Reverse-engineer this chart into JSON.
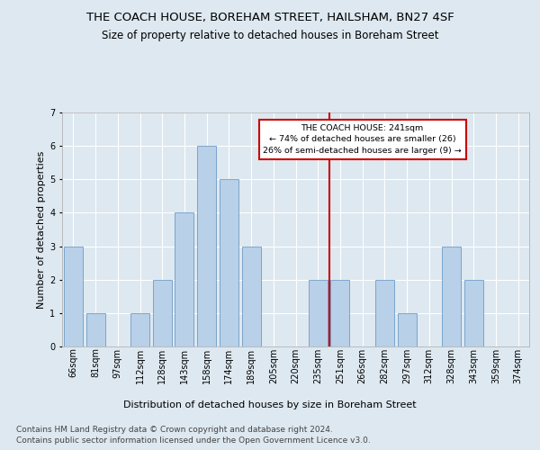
{
  "title": "THE COACH HOUSE, BOREHAM STREET, HAILSHAM, BN27 4SF",
  "subtitle": "Size of property relative to detached houses in Boreham Street",
  "xlabel": "Distribution of detached houses by size in Boreham Street",
  "ylabel": "Number of detached properties",
  "categories": [
    "66sqm",
    "81sqm",
    "97sqm",
    "112sqm",
    "128sqm",
    "143sqm",
    "158sqm",
    "174sqm",
    "189sqm",
    "205sqm",
    "220sqm",
    "235sqm",
    "251sqm",
    "266sqm",
    "282sqm",
    "297sqm",
    "312sqm",
    "328sqm",
    "343sqm",
    "359sqm",
    "374sqm"
  ],
  "values": [
    3,
    1,
    0,
    1,
    2,
    4,
    6,
    5,
    3,
    0,
    0,
    2,
    2,
    0,
    2,
    1,
    0,
    3,
    2,
    0,
    0
  ],
  "bar_color": "#b8d0e8",
  "bar_edge_color": "#5a8fc0",
  "ylim": [
    0,
    7
  ],
  "yticks": [
    0,
    1,
    2,
    3,
    4,
    5,
    6,
    7
  ],
  "subject_size_label": "241sqm",
  "subject_label": "THE COACH HOUSE: 241sqm",
  "annotation_line1": "← 74% of detached houses are smaller (26)",
  "annotation_line2": "26% of semi-detached houses are larger (9) →",
  "vline_color": "#cc0000",
  "annotation_box_edge": "#cc0000",
  "background_color": "#dde8f0",
  "plot_bg_color": "#dde8f0",
  "footer1": "Contains HM Land Registry data © Crown copyright and database right 2024.",
  "footer2": "Contains public sector information licensed under the Open Government Licence v3.0.",
  "title_fontsize": 9.5,
  "subtitle_fontsize": 8.5,
  "xlabel_fontsize": 8,
  "ylabel_fontsize": 8,
  "tick_fontsize": 7,
  "footer_fontsize": 6.5,
  "subject_bin_index": 11,
  "num_bins": 21
}
